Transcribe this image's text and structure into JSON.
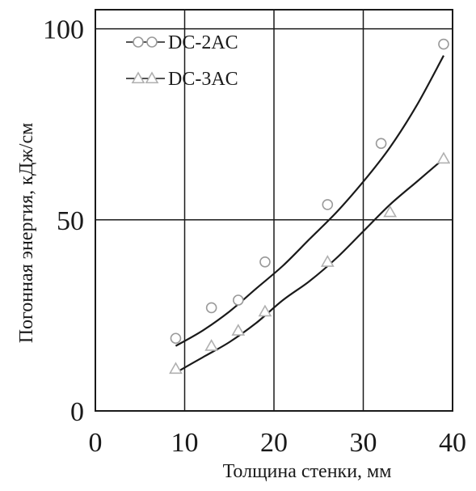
{
  "chart_data": {
    "type": "scatter",
    "title": "",
    "xlabel": "Толщина стенки, мм",
    "ylabel": "Погонная энергия, кДж/см",
    "xlim": [
      0,
      40
    ],
    "ylim": [
      0,
      105
    ],
    "x_ticks": [
      "0",
      "10",
      "20",
      "30",
      "40"
    ],
    "y_ticks": [
      "0",
      "50",
      "100"
    ],
    "grid": true,
    "legend_position": "top-left",
    "series": [
      {
        "name": "DC-2AC",
        "marker": "circle",
        "color": "#9a9a9a",
        "points": [
          [
            9,
            19
          ],
          [
            13,
            27
          ],
          [
            16,
            29
          ],
          [
            19,
            39
          ],
          [
            26,
            54
          ],
          [
            32,
            70
          ],
          [
            39,
            96
          ]
        ],
        "trend": [
          [
            9,
            17
          ],
          [
            12,
            21
          ],
          [
            15,
            26
          ],
          [
            18,
            32
          ],
          [
            21,
            38
          ],
          [
            24,
            45
          ],
          [
            27,
            52
          ],
          [
            30,
            60
          ],
          [
            33,
            69
          ],
          [
            36,
            80
          ],
          [
            39,
            93
          ]
        ]
      },
      {
        "name": "DC-3AC",
        "marker": "triangle",
        "color": "#b0b0b0",
        "points": [
          [
            9,
            11
          ],
          [
            13,
            17
          ],
          [
            16,
            21
          ],
          [
            19,
            26
          ],
          [
            26,
            39
          ],
          [
            33,
            52
          ],
          [
            39,
            66
          ]
        ],
        "trend": [
          [
            9,
            10
          ],
          [
            12,
            14
          ],
          [
            15,
            18
          ],
          [
            18,
            23
          ],
          [
            21,
            29
          ],
          [
            24,
            34
          ],
          [
            27,
            40
          ],
          [
            30,
            47
          ],
          [
            33,
            54
          ],
          [
            36,
            60
          ],
          [
            39,
            66
          ]
        ]
      }
    ]
  }
}
